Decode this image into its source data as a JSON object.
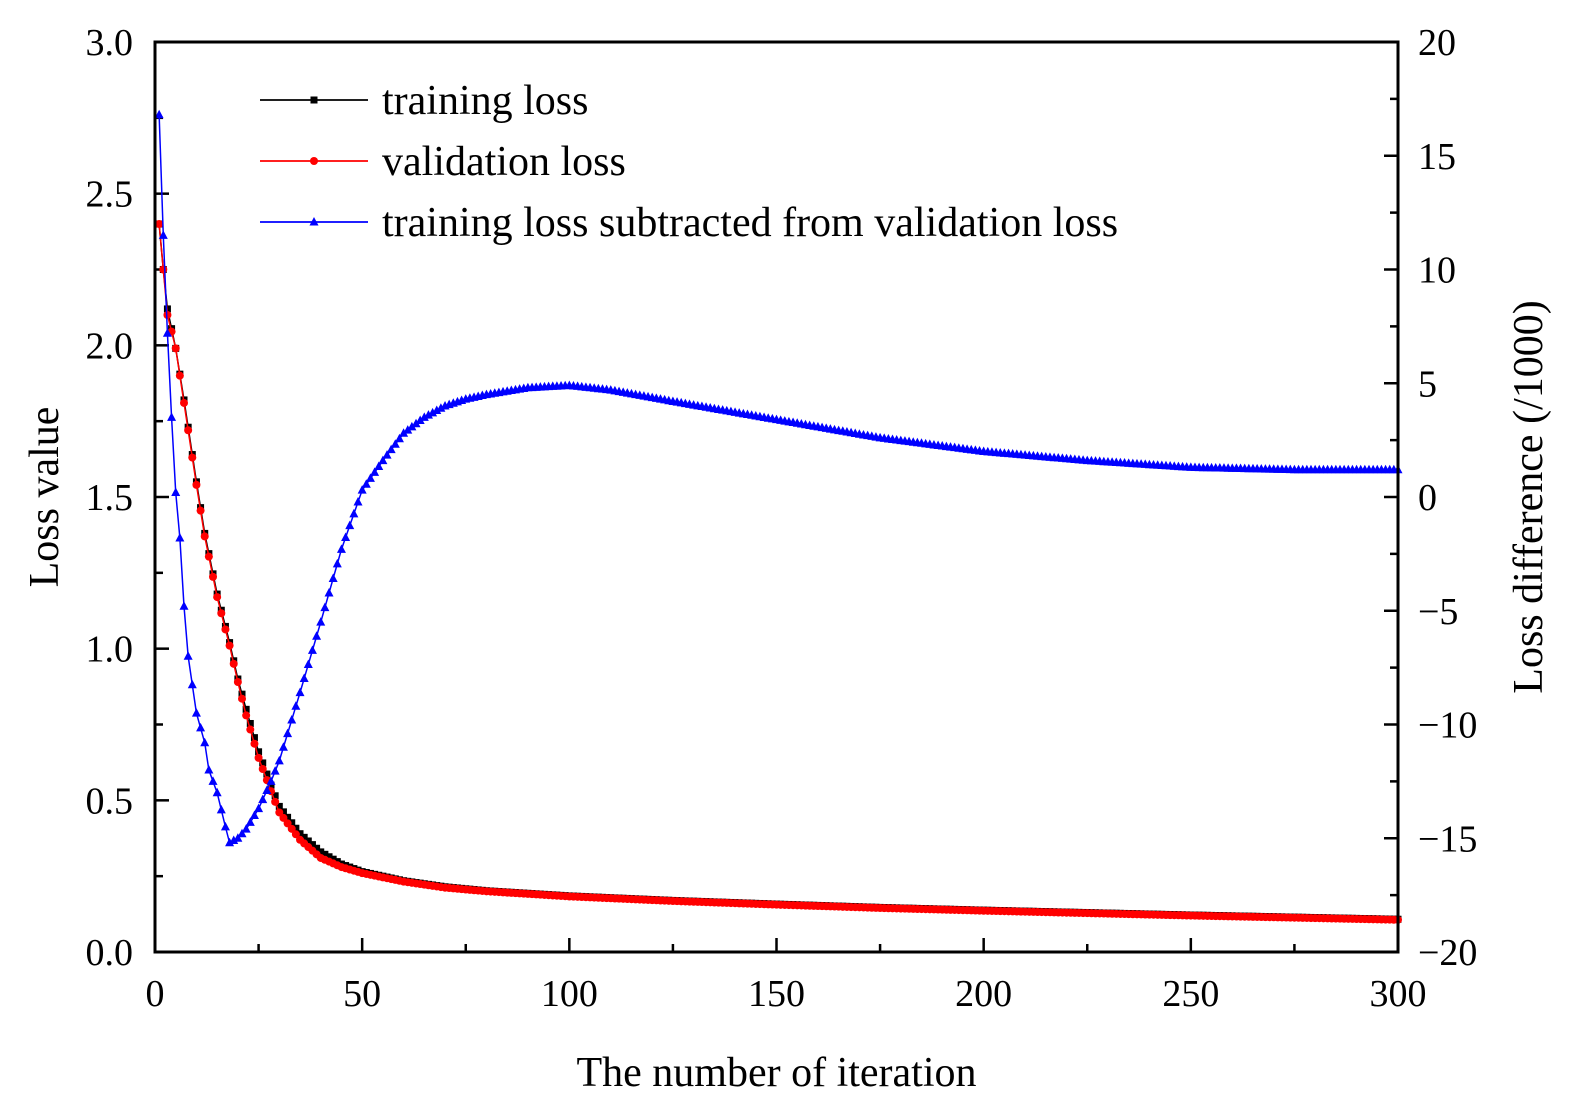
{
  "chart_data": {
    "type": "line",
    "title": "",
    "xlabel": "The number of iteration",
    "ylabel": "Loss value",
    "y2label": "Loss difference (/1000)",
    "xlim": [
      0,
      300
    ],
    "ylim": [
      0,
      3.0
    ],
    "y2lim": [
      -20,
      20
    ],
    "xticks": [
      "0",
      "50",
      "100",
      "150",
      "200",
      "250",
      "300"
    ],
    "yticks": [
      "0.0",
      "0.5",
      "1.0",
      "1.5",
      "2.0",
      "2.5",
      "3.0"
    ],
    "y2ticks": [
      "−20",
      "−15",
      "−10",
      "−5",
      "0",
      "5",
      "10",
      "15",
      "20"
    ],
    "grid": false,
    "legend_position": "top-left",
    "series": [
      {
        "name": "training loss",
        "axis": "left",
        "color": "#000000",
        "marker": "square",
        "points": [
          [
            1,
            2.4
          ],
          [
            2,
            2.25
          ],
          [
            3,
            2.12
          ],
          [
            5,
            1.99
          ],
          [
            7,
            1.82
          ],
          [
            10,
            1.55
          ],
          [
            12,
            1.38
          ],
          [
            15,
            1.18
          ],
          [
            18,
            1.02
          ],
          [
            20,
            0.9
          ],
          [
            22,
            0.8
          ],
          [
            25,
            0.66
          ],
          [
            28,
            0.55
          ],
          [
            30,
            0.48
          ],
          [
            35,
            0.39
          ],
          [
            40,
            0.33
          ],
          [
            45,
            0.29
          ],
          [
            50,
            0.265
          ],
          [
            60,
            0.235
          ],
          [
            70,
            0.215
          ],
          [
            80,
            0.202
          ],
          [
            100,
            0.185
          ],
          [
            125,
            0.17
          ],
          [
            150,
            0.158
          ],
          [
            175,
            0.147
          ],
          [
            200,
            0.138
          ],
          [
            225,
            0.13
          ],
          [
            250,
            0.122
          ],
          [
            275,
            0.115
          ],
          [
            300,
            0.108
          ]
        ]
      },
      {
        "name": "validation loss",
        "axis": "left",
        "color": "#ff0000",
        "marker": "circle",
        "points": [
          [
            1,
            2.4
          ],
          [
            2,
            2.25
          ],
          [
            3,
            2.1
          ],
          [
            5,
            1.99
          ],
          [
            7,
            1.81
          ],
          [
            10,
            1.54
          ],
          [
            12,
            1.37
          ],
          [
            15,
            1.17
          ],
          [
            18,
            1.01
          ],
          [
            20,
            0.89
          ],
          [
            22,
            0.78
          ],
          [
            25,
            0.64
          ],
          [
            28,
            0.53
          ],
          [
            30,
            0.46
          ],
          [
            35,
            0.37
          ],
          [
            40,
            0.31
          ],
          [
            45,
            0.28
          ],
          [
            50,
            0.26
          ],
          [
            60,
            0.232
          ],
          [
            70,
            0.212
          ],
          [
            80,
            0.2
          ],
          [
            100,
            0.183
          ],
          [
            125,
            0.168
          ],
          [
            150,
            0.156
          ],
          [
            175,
            0.145
          ],
          [
            200,
            0.136
          ],
          [
            225,
            0.128
          ],
          [
            250,
            0.12
          ],
          [
            275,
            0.113
          ],
          [
            300,
            0.106
          ]
        ]
      },
      {
        "name": "training loss subtracted from validation loss",
        "axis": "right",
        "color": "#0000ff",
        "marker": "triangle",
        "points": [
          [
            1,
            16.8
          ],
          [
            2,
            11.5
          ],
          [
            3,
            7.2
          ],
          [
            4,
            3.5
          ],
          [
            5,
            0.2
          ],
          [
            6,
            -1.8
          ],
          [
            7,
            -4.8
          ],
          [
            8,
            -7.0
          ],
          [
            10,
            -9.5
          ],
          [
            12,
            -10.8
          ],
          [
            13,
            -12.0
          ],
          [
            15,
            -13.0
          ],
          [
            17,
            -14.5
          ],
          [
            18,
            -15.2
          ],
          [
            20,
            -15.0
          ],
          [
            22,
            -14.6
          ],
          [
            25,
            -13.7
          ],
          [
            28,
            -12.5
          ],
          [
            30,
            -11.6
          ],
          [
            35,
            -8.6
          ],
          [
            40,
            -5.5
          ],
          [
            45,
            -2.3
          ],
          [
            50,
            0.3
          ],
          [
            55,
            1.6
          ],
          [
            60,
            2.8
          ],
          [
            65,
            3.5
          ],
          [
            70,
            4.0
          ],
          [
            75,
            4.3
          ],
          [
            80,
            4.5
          ],
          [
            90,
            4.8
          ],
          [
            100,
            4.9
          ],
          [
            110,
            4.7
          ],
          [
            125,
            4.2
          ],
          [
            150,
            3.4
          ],
          [
            175,
            2.6
          ],
          [
            200,
            2.0
          ],
          [
            225,
            1.6
          ],
          [
            250,
            1.3
          ],
          [
            275,
            1.2
          ],
          [
            300,
            1.2
          ]
        ]
      }
    ]
  }
}
